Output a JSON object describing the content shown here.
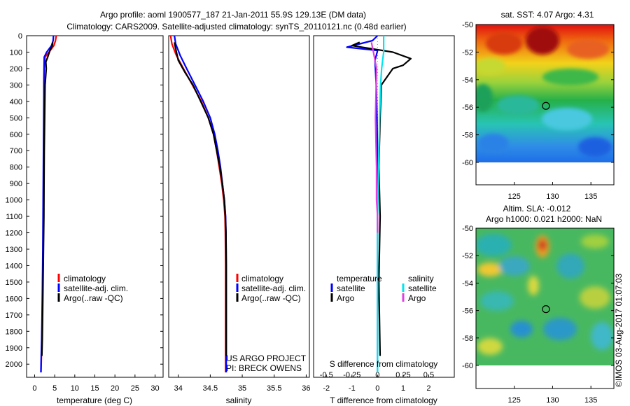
{
  "header": {
    "title_line1": "Argo profile: aoml 1900577_187 21-Jan-2011 55.9S 129.13E (DM data)",
    "title_line2": "Climatology: CARS2009. Satellite-adjusted climatology: synTS_20110121.nc (0.48d earlier)"
  },
  "colors": {
    "climatology": "#ff0000",
    "satellite": "#0000ff",
    "argo": "#000000",
    "salinity_satellite": "#00e5ee",
    "salinity_argo": "#e040e0"
  },
  "credit": {
    "line1": "US ARGO PROJECT",
    "line2": "PI: BRECK OWENS"
  },
  "stamp": "©IMOS 03-Aug-2017 01:07:03",
  "chart_data": [
    {
      "type": "line",
      "xlabel": "temperature (deg C)",
      "ylabel": "",
      "xlim": [
        -2,
        32
      ],
      "ylim": [
        2080,
        0
      ],
      "x_ticks": [
        0,
        5,
        10,
        15,
        20,
        25,
        30
      ],
      "y_ticks": [
        0,
        100,
        200,
        300,
        400,
        500,
        600,
        700,
        800,
        900,
        1000,
        1100,
        1200,
        1300,
        1400,
        1500,
        1600,
        1700,
        1800,
        1900,
        2000
      ],
      "legend": [
        "climatology",
        "satellite-adj. clim.",
        "Argo(..raw -QC)"
      ],
      "legend_position": "middle-left",
      "series": [
        {
          "name": "climatology",
          "color": "#ff0000",
          "x": [
            5.4,
            5.2,
            4.8,
            3.6,
            2.6,
            2.4,
            2.3,
            2.3,
            2.25,
            2.2,
            2.15,
            2.1,
            2.0,
            1.9,
            1.8,
            1.7,
            1.6
          ],
          "y": [
            0,
            30,
            60,
            100,
            130,
            200,
            300,
            500,
            700,
            900,
            1100,
            1300,
            1500,
            1700,
            1850,
            1950,
            2050
          ]
        },
        {
          "name": "satellite-adj. clim.",
          "color": "#0000ff",
          "x": [
            4.7,
            4.6,
            4.2,
            3.0,
            2.4,
            2.35,
            2.3,
            2.25,
            2.2,
            2.15,
            2.1,
            2.05,
            1.95,
            1.85,
            1.75,
            1.65,
            1.55
          ],
          "y": [
            0,
            30,
            60,
            100,
            130,
            200,
            300,
            500,
            700,
            900,
            1100,
            1300,
            1500,
            1700,
            1850,
            1950,
            2050
          ]
        },
        {
          "name": "Argo(..raw -QC)",
          "color": "#000000",
          "x": [
            4.5,
            4.4,
            3.8,
            3.4,
            2.8,
            2.9,
            2.6,
            2.5,
            2.4,
            2.35,
            2.3,
            2.2,
            2.1,
            2.0,
            1.9,
            1.8
          ],
          "y": [
            40,
            60,
            90,
            120,
            160,
            200,
            300,
            500,
            700,
            900,
            1100,
            1300,
            1500,
            1700,
            1850,
            1950
          ]
        }
      ]
    },
    {
      "type": "line",
      "xlabel": "salinity",
      "ylabel": "",
      "xlim": [
        33.85,
        36.05
      ],
      "ylim": [
        2080,
        0
      ],
      "x_ticks": [
        34,
        34.5,
        35,
        35.5,
        36
      ],
      "x_tick_labels": [
        "34",
        "34.5",
        "35",
        "35.5",
        "36"
      ],
      "legend": [
        "climatology",
        "satellite-adj. clim.",
        "Argo(..raw -QC)"
      ],
      "legend_position": "middle-right",
      "series": [
        {
          "name": "climatology",
          "color": "#ff0000",
          "x": [
            33.88,
            33.9,
            33.97,
            34.08,
            34.22,
            34.36,
            34.47,
            34.55,
            34.6,
            34.64,
            34.68,
            34.71,
            34.73,
            34.735,
            34.74,
            34.74,
            34.74
          ],
          "y": [
            0,
            50,
            120,
            200,
            300,
            400,
            500,
            600,
            700,
            800,
            900,
            1000,
            1100,
            1200,
            1400,
            1700,
            2050
          ]
        },
        {
          "name": "satellite-adj. clim.",
          "color": "#0000ff",
          "x": [
            33.94,
            33.96,
            34.03,
            34.13,
            34.26,
            34.39,
            34.5,
            34.57,
            34.62,
            34.66,
            34.69,
            34.72,
            34.74,
            34.745,
            34.75,
            34.75,
            34.75
          ],
          "y": [
            0,
            50,
            120,
            200,
            300,
            400,
            500,
            600,
            700,
            800,
            900,
            1000,
            1100,
            1200,
            1400,
            1700,
            2050
          ]
        },
        {
          "name": "Argo(..raw -QC)",
          "color": "#000000",
          "x": [
            33.94,
            33.96,
            34.0,
            34.1,
            34.23,
            34.35,
            34.47,
            34.55,
            34.6,
            34.65,
            34.69,
            34.72,
            34.735,
            34.745,
            34.75,
            34.75
          ],
          "y": [
            40,
            80,
            150,
            220,
            300,
            400,
            500,
            600,
            700,
            800,
            900,
            1000,
            1100,
            1200,
            1400,
            1950
          ]
        }
      ]
    },
    {
      "type": "line",
      "xlabel": "T difference from climatology",
      "x2label": "S difference from climatology",
      "xlim": [
        -2.5,
        3.0
      ],
      "x_ticks": [
        -2,
        -1,
        0,
        1,
        2
      ],
      "x2_ticks": [
        -0.5,
        -0.25,
        0,
        0.25,
        0.5
      ],
      "x2_tick_labels": [
        "-0.5",
        "-0.25",
        "0",
        "0.25",
        "0.5"
      ],
      "ylim": [
        2080,
        0
      ],
      "legend_titles": [
        "temperature",
        "salinity"
      ],
      "legend": [
        "satellite",
        "Argo",
        "satellite",
        "Argo"
      ],
      "legend_position": "middle",
      "series": [
        {
          "name": "temperature satellite",
          "color": "#0000ff",
          "x": [
            0.0,
            -0.2,
            -1.2,
            0.0,
            -0.1,
            -0.05,
            -0.02,
            0.0,
            0.0,
            0.0,
            0.0
          ],
          "y": [
            0,
            30,
            70,
            90,
            150,
            300,
            500,
            800,
            1100,
            1500,
            2050
          ]
        },
        {
          "name": "temperature Argo",
          "color": "#000000",
          "x": [
            -0.7,
            -1.0,
            0.6,
            1.3,
            1.0,
            0.6,
            0.15,
            0.1,
            0.05,
            0.1,
            0.05,
            0.1
          ],
          "y": [
            40,
            60,
            100,
            140,
            180,
            200,
            300,
            500,
            800,
            1100,
            1500,
            1950
          ]
        },
        {
          "name": "salinity satellite",
          "color": "#00e5ee",
          "x": [
            0.06,
            0.06,
            0.06,
            0.04,
            0.03,
            0.02,
            0.01,
            0.0,
            0.0,
            0.0
          ],
          "y": [
            0,
            50,
            100,
            200,
            300,
            500,
            800,
            1100,
            1500,
            2050
          ]
        },
        {
          "name": "salinity Argo",
          "color": "#e040e0",
          "x": [
            -0.06,
            -0.04,
            -0.01,
            -0.02,
            -0.01,
            -0.01,
            0.0,
            0.0
          ],
          "y": [
            40,
            100,
            200,
            500,
            800,
            1000,
            1100,
            1200
          ]
        }
      ]
    },
    {
      "type": "heatmap",
      "title": "sat. SST: 4.07 Argo: 4.31",
      "xlim": [
        120,
        138
      ],
      "ylim": [
        -60,
        -50
      ],
      "x_ticks": [
        125,
        130,
        135
      ],
      "y_ticks": [
        -50,
        -52,
        -54,
        -56,
        -58,
        -60
      ],
      "marker": {
        "x": 129.13,
        "y": -55.9
      }
    },
    {
      "type": "heatmap",
      "title": "Altim. SLA: -0.012",
      "subtitle": "Argo h1000: 0.021 h2000: NaN",
      "xlim": [
        120,
        138
      ],
      "ylim": [
        -60,
        -50
      ],
      "x_ticks": [
        125,
        130,
        135
      ],
      "y_ticks": [
        -50,
        -52,
        -54,
        -56,
        -58,
        -60
      ],
      "marker": {
        "x": 129.13,
        "y": -55.9
      }
    }
  ]
}
